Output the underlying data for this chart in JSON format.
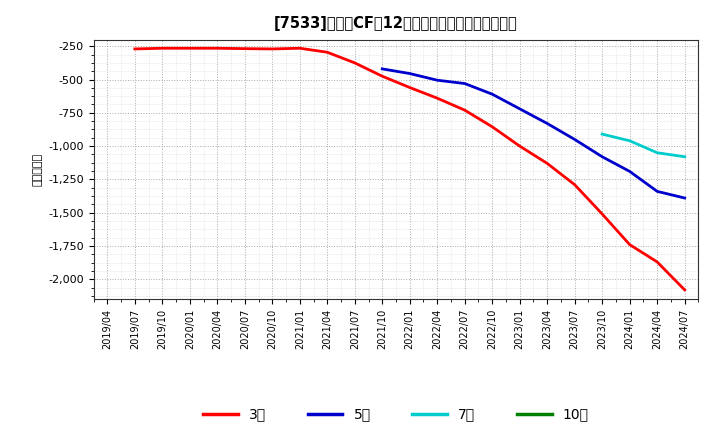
{
  "title": "[7533]　投賄CFの12か月移動合計の平均値の推移",
  "ylabel": "（百万円）",
  "background_color": "#ffffff",
  "plot_bg_color": "#ffffff",
  "ylim": [
    -2150,
    -200
  ],
  "yticks": [
    -2000,
    -1750,
    -1500,
    -1250,
    -1000,
    -750,
    -500,
    -250
  ],
  "series": {
    "3年": {
      "color": "#ff0000",
      "x": [
        "2019/07",
        "2019/10",
        "2020/01",
        "2020/04",
        "2020/07",
        "2020/10",
        "2021/01",
        "2021/04",
        "2021/07",
        "2021/10",
        "2022/01",
        "2022/04",
        "2022/07",
        "2022/10",
        "2023/01",
        "2023/04",
        "2023/07",
        "2023/10",
        "2024/01",
        "2024/04",
        "2024/07"
      ],
      "y": [
        -270,
        -265,
        -265,
        -265,
        -268,
        -270,
        -265,
        -295,
        -375,
        -475,
        -560,
        -640,
        -730,
        -855,
        -1000,
        -1130,
        -1290,
        -1510,
        -1740,
        -1870,
        -2080
      ]
    },
    "5年": {
      "color": "#0000cc",
      "x": [
        "2021/10",
        "2022/01",
        "2022/04",
        "2022/07",
        "2022/10",
        "2023/01",
        "2023/04",
        "2023/07",
        "2023/10",
        "2024/01",
        "2024/04",
        "2024/07"
      ],
      "y": [
        -420,
        -455,
        -505,
        -530,
        -610,
        -720,
        -830,
        -950,
        -1080,
        -1190,
        -1340,
        -1390
      ]
    },
    "7年": {
      "color": "#00cccc",
      "x": [
        "2023/10",
        "2024/01",
        "2024/04",
        "2024/07"
      ],
      "y": [
        -910,
        -960,
        -1050,
        -1080
      ]
    },
    "10年": {
      "color": "#008000",
      "x": [],
      "y": []
    }
  },
  "legend_labels": [
    "3年",
    "5年",
    "7年",
    "10年"
  ],
  "legend_colors": [
    "#ff0000",
    "#0000cc",
    "#00cccc",
    "#008000"
  ],
  "x_tick_labels": [
    "2019/04",
    "2019/07",
    "2019/10",
    "2020/01",
    "2020/04",
    "2020/07",
    "2020/10",
    "2021/01",
    "2021/04",
    "2021/07",
    "2021/10",
    "2022/01",
    "2022/04",
    "2022/07",
    "2022/10",
    "2023/01",
    "2023/04",
    "2023/07",
    "2023/10",
    "2024/01",
    "2024/04",
    "2024/07"
  ]
}
